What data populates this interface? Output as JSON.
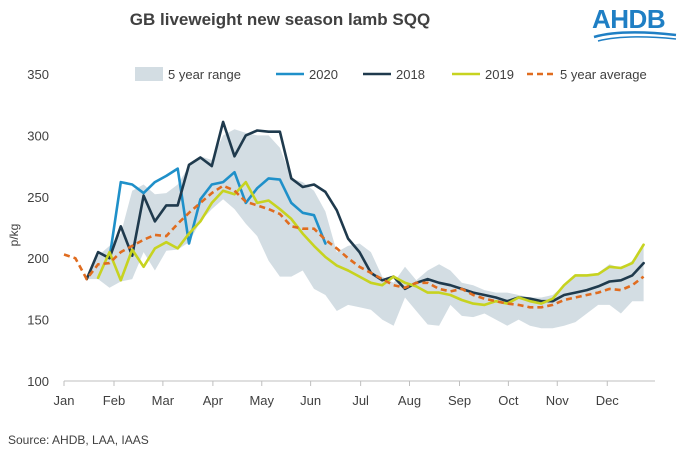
{
  "source": "Source: AHDB, LAA, IAAS",
  "logo_text": "AHDB",
  "chart_data": {
    "type": "line",
    "title": "GB liveweight new season lamb SQQ",
    "ylabel": "p/kg",
    "xlabel": "",
    "ylim": [
      100,
      350
    ],
    "yticks": [
      100,
      150,
      200,
      250,
      300,
      350
    ],
    "xlim": [
      1,
      53
    ],
    "months": [
      "Jan",
      "Feb",
      "Mar",
      "Apr",
      "May",
      "Jun",
      "Jul",
      "Aug",
      "Sep",
      "Oct",
      "Nov",
      "Dec"
    ],
    "month_weeks": [
      1,
      5.4,
      9.7,
      14.1,
      18.4,
      22.7,
      27.1,
      31.4,
      35.8,
      40.1,
      44.4,
      48.8
    ],
    "legend_position": "top",
    "grid": false,
    "range": {
      "name": "5 year range",
      "color": "#d3dde3",
      "x": [
        3,
        4,
        5,
        6,
        7,
        8,
        9,
        10,
        11,
        12,
        13,
        14,
        15,
        16,
        17,
        18,
        19,
        20,
        21,
        22,
        23,
        24,
        25,
        26,
        27,
        28,
        29,
        30,
        31,
        32,
        33,
        34,
        35,
        36,
        37,
        38,
        39,
        40,
        41,
        42,
        43,
        44,
        45,
        46,
        47,
        48,
        49,
        50,
        51,
        52
      ],
      "low": [
        183,
        183,
        176,
        181,
        183,
        205,
        190,
        206,
        207,
        213,
        230,
        240,
        248,
        240,
        228,
        218,
        198,
        185,
        185,
        190,
        175,
        170,
        157,
        162,
        160,
        158,
        150,
        145,
        168,
        157,
        146,
        145,
        162,
        153,
        152,
        155,
        150,
        145,
        150,
        145,
        143,
        143,
        145,
        148,
        155,
        162,
        162,
        155,
        165,
        165
      ],
      "high": [
        183,
        202,
        210,
        220,
        255,
        260,
        252,
        253,
        260,
        275,
        283,
        280,
        300,
        305,
        302,
        300,
        300,
        290,
        265,
        262,
        255,
        238,
        205,
        210,
        212,
        205,
        185,
        180,
        193,
        182,
        190,
        195,
        190,
        180,
        178,
        174,
        172,
        172,
        170,
        168,
        168,
        170,
        178,
        187,
        187,
        188,
        195,
        192,
        198,
        212
      ]
    },
    "series": [
      {
        "name": "5 year range",
        "color": "#d3dde3",
        "style": "area",
        "legend_only": true,
        "x": [],
        "values": []
      },
      {
        "name": "2020",
        "color": "#1f90c9",
        "style": "solid",
        "x": [
          5,
          6,
          7,
          8,
          9,
          10,
          11,
          12,
          13,
          14,
          15,
          16,
          17,
          18,
          19,
          20,
          21,
          22,
          23,
          24
        ],
        "values": [
          200,
          262,
          260,
          253,
          262,
          267,
          273,
          212,
          248,
          260,
          262,
          270,
          245,
          257,
          265,
          264,
          245,
          237,
          235,
          212
        ]
      },
      {
        "name": "2018",
        "color": "#1f3a4d",
        "style": "solid",
        "x": [
          3,
          4,
          5,
          6,
          7,
          8,
          9,
          10,
          11,
          12,
          13,
          14,
          15,
          16,
          17,
          18,
          19,
          20,
          21,
          22,
          23,
          24,
          25,
          26,
          27,
          28,
          29,
          30,
          31,
          32,
          33,
          34,
          35,
          36,
          37,
          38,
          39,
          40,
          41,
          42,
          43,
          44,
          45,
          46,
          47,
          48,
          49,
          50,
          51,
          52
        ],
        "values": [
          183,
          205,
          200,
          226,
          202,
          251,
          230,
          243,
          243,
          276,
          282,
          275,
          311,
          283,
          300,
          304,
          303,
          303,
          265,
          258,
          260,
          254,
          239,
          216,
          205,
          188,
          182,
          185,
          175,
          180,
          183,
          180,
          178,
          175,
          172,
          170,
          168,
          165,
          168,
          167,
          165,
          165,
          170,
          172,
          174,
          177,
          181,
          182,
          186,
          196
        ]
      },
      {
        "name": "2019",
        "color": "#c7d320",
        "style": "solid",
        "x": [
          4,
          5,
          6,
          7,
          8,
          9,
          10,
          11,
          12,
          13,
          14,
          15,
          16,
          17,
          18,
          19,
          20,
          21,
          22,
          23,
          24,
          25,
          26,
          27,
          28,
          29,
          30,
          31,
          32,
          33,
          34,
          35,
          36,
          37,
          38,
          39,
          40,
          41,
          42,
          43,
          44,
          45,
          46,
          47,
          48,
          49,
          50,
          51,
          52
        ],
        "values": [
          184,
          205,
          182,
          207,
          193,
          208,
          213,
          208,
          220,
          230,
          245,
          255,
          252,
          262,
          245,
          247,
          240,
          232,
          220,
          210,
          201,
          194,
          190,
          185,
          180,
          178,
          185,
          180,
          177,
          172,
          172,
          170,
          166,
          163,
          162,
          165,
          163,
          168,
          165,
          163,
          167,
          178,
          186,
          186,
          187,
          193,
          192,
          196,
          211
        ]
      },
      {
        "name": "5 year average",
        "color": "#e06c1f",
        "style": "dashed",
        "x": [
          1,
          2,
          3,
          4,
          5,
          6,
          7,
          8,
          9,
          10,
          11,
          12,
          13,
          14,
          15,
          16,
          17,
          18,
          19,
          20,
          21,
          22,
          23,
          24,
          25,
          26,
          27,
          28,
          29,
          30,
          31,
          32,
          33,
          34,
          35,
          36,
          37,
          38,
          39,
          40,
          41,
          42,
          43,
          44,
          45,
          46,
          47,
          48,
          49,
          50,
          51,
          52
        ],
        "values": [
          203,
          200,
          183,
          195,
          196,
          205,
          210,
          215,
          219,
          218,
          228,
          237,
          245,
          253,
          259,
          255,
          246,
          243,
          240,
          236,
          226,
          224,
          224,
          215,
          208,
          200,
          193,
          188,
          183,
          178,
          176,
          180,
          180,
          175,
          173,
          175,
          170,
          167,
          165,
          163,
          162,
          160,
          160,
          162,
          166,
          168,
          170,
          172,
          175,
          174,
          178,
          185
        ]
      }
    ]
  }
}
